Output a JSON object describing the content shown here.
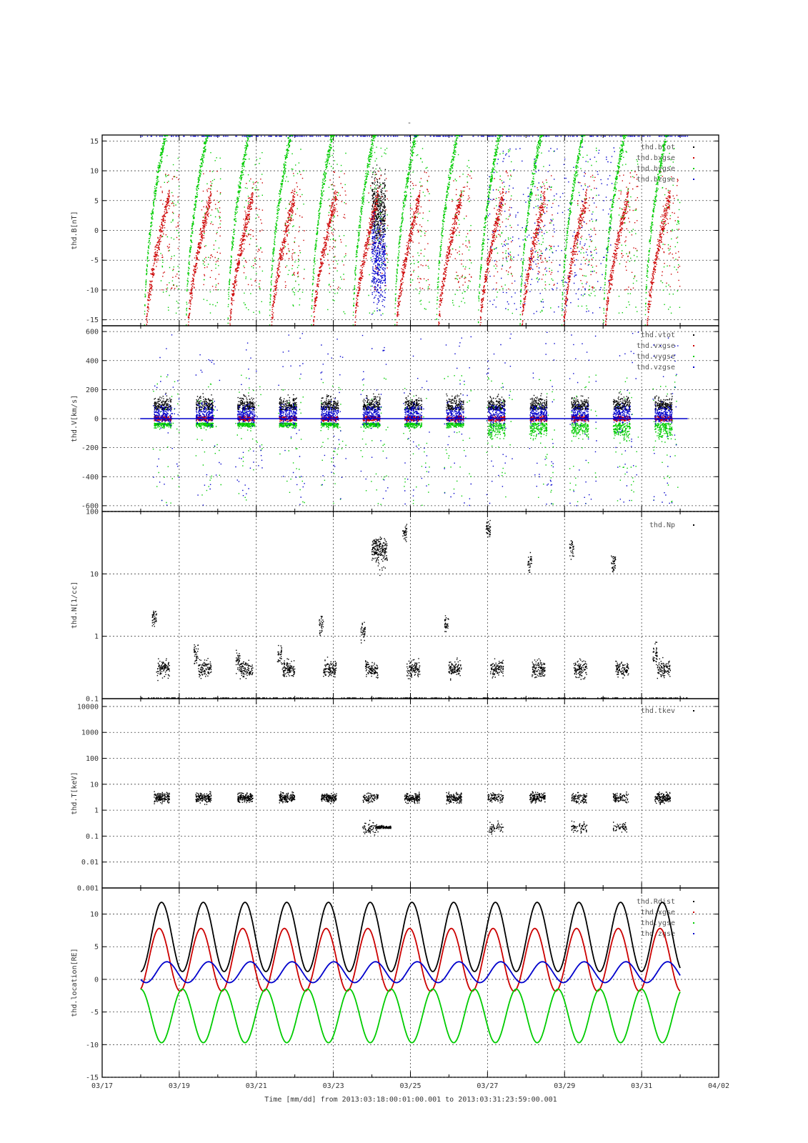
{
  "chart_data": {
    "type": "scatter",
    "top_mark": "-",
    "x_ticks": [
      "03/17",
      "03/19",
      "03/21",
      "03/23",
      "03/25",
      "03/27",
      "03/29",
      "03/31",
      "04/02"
    ],
    "x_title": "Time [mm/dd]  from 2013:03:18:00:01:00.001  to  2013:03:31:23:59:00.001",
    "x_range_days": [
      17,
      33
    ],
    "panels": [
      {
        "id": "B",
        "ylabel": "thd.B[nT]",
        "scale": "linear",
        "ylim": [
          -16,
          16
        ],
        "ticks": [
          -15,
          -10,
          -5,
          0,
          5,
          10,
          15
        ],
        "tick_labels": [
          "-15",
          "-10",
          "-5",
          "0",
          "5",
          "10",
          "15"
        ],
        "series": [
          {
            "name": "thd.btot",
            "color": "#000000"
          },
          {
            "name": "thd.bxgse",
            "color": "#cc0000"
          },
          {
            "name": "thd.bygse",
            "color": "#00cc00"
          },
          {
            "name": "thd.bzgse",
            "color": "#0000cc"
          }
        ]
      },
      {
        "id": "V",
        "ylabel": "thd.V[km/s]",
        "scale": "linear",
        "ylim": [
          -640,
          640
        ],
        "ticks": [
          -600,
          -400,
          -200,
          0,
          200,
          400,
          600
        ],
        "tick_labels": [
          "-600",
          "-400",
          "-200",
          "0",
          "200",
          "400",
          "600"
        ],
        "series": [
          {
            "name": "thd.vtot",
            "color": "#000000"
          },
          {
            "name": "thd.vxgse",
            "color": "#cc0000"
          },
          {
            "name": "thd.vygse",
            "color": "#00cc00"
          },
          {
            "name": "thd.vzgse",
            "color": "#0000cc"
          }
        ]
      },
      {
        "id": "N",
        "ylabel": "thd.N[1/cc]",
        "scale": "log",
        "ylim": [
          0.1,
          100
        ],
        "ticks": [
          0.1,
          1,
          10,
          100
        ],
        "tick_labels": [
          "0.1",
          "1",
          "10",
          "100"
        ],
        "series": [
          {
            "name": "thd.Np",
            "color": "#000000"
          }
        ]
      },
      {
        "id": "T",
        "ylabel": "thd.T[keV]",
        "scale": "log",
        "ylim": [
          0.001,
          20000
        ],
        "ticks": [
          0.001,
          0.01,
          0.1,
          1,
          10,
          100,
          1000,
          10000
        ],
        "tick_labels": [
          "0.001",
          "0.01",
          "0.1",
          "1",
          "10",
          "100",
          "1000",
          "10000"
        ],
        "series": [
          {
            "name": "thd.tkev",
            "color": "#000000"
          }
        ]
      },
      {
        "id": "L",
        "ylabel": "thd.location[RE]",
        "scale": "linear",
        "ylim": [
          -15,
          14
        ],
        "ticks": [
          -15,
          -10,
          -5,
          0,
          5,
          10
        ],
        "tick_labels": [
          "-15",
          "-10",
          "-5",
          "0",
          "5",
          "10"
        ],
        "series": [
          {
            "name": "thd.Rdist",
            "color": "#000000"
          },
          {
            "name": "thd.xgse",
            "color": "#cc0000"
          },
          {
            "name": "thd.ygse",
            "color": "#00cc00"
          },
          {
            "name": "thd.zgse",
            "color": "#0000cc"
          }
        ]
      }
    ],
    "grid": true,
    "legend_position": "top-right"
  }
}
